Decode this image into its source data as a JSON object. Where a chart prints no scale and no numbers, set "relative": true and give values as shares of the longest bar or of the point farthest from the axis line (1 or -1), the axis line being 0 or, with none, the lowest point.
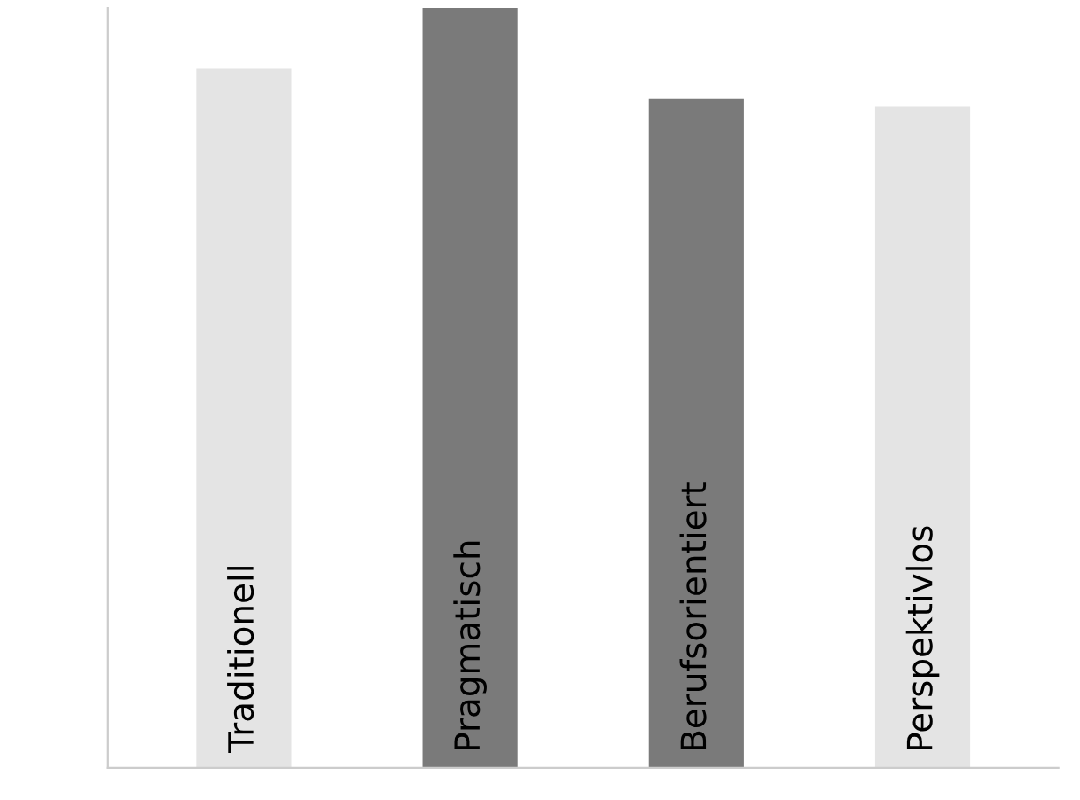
{
  "chart_data": {
    "type": "bar",
    "relative": true,
    "categories": [
      "Traditionell",
      "Pragmatisch",
      "Berufsorientiert",
      "Perspektivlos"
    ],
    "values": [
      0.92,
      1,
      0.88,
      0.87
    ],
    "colors": [
      "#e4e4e4",
      "#7a7a7a",
      "#7a7a7a",
      "#e4e4e4"
    ]
  }
}
